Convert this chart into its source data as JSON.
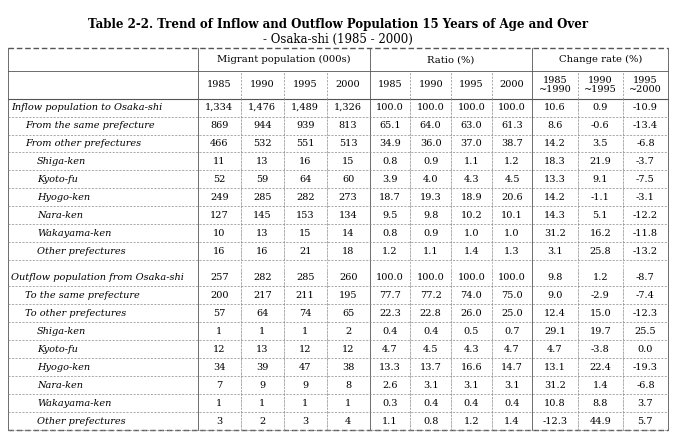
{
  "title_line1": "Table 2-2. Trend of Inflow and Outflow Population 15 Years of Age and Over",
  "title_line2": "- Osaka-shi (1985 - 2000)",
  "rows": [
    {
      "label": "Inflow population to Osaka-shi",
      "indent": 0,
      "values": [
        "1,334",
        "1,476",
        "1,489",
        "1,326",
        "100.0",
        "100.0",
        "100.0",
        "100.0",
        "10.6",
        "0.9",
        "-10.9"
      ]
    },
    {
      "label": "From the same prefecture",
      "indent": 1,
      "values": [
        "869",
        "944",
        "939",
        "813",
        "65.1",
        "64.0",
        "63.0",
        "61.3",
        "8.6",
        "-0.6",
        "-13.4"
      ]
    },
    {
      "label": "From other prefectures",
      "indent": 1,
      "values": [
        "466",
        "532",
        "551",
        "513",
        "34.9",
        "36.0",
        "37.0",
        "38.7",
        "14.2",
        "3.5",
        "-6.8"
      ]
    },
    {
      "label": "Shiga-ken",
      "indent": 2,
      "values": [
        "11",
        "13",
        "16",
        "15",
        "0.8",
        "0.9",
        "1.1",
        "1.2",
        "18.3",
        "21.9",
        "-3.7"
      ]
    },
    {
      "label": "Kyoto-fu",
      "indent": 2,
      "values": [
        "52",
        "59",
        "64",
        "60",
        "3.9",
        "4.0",
        "4.3",
        "4.5",
        "13.3",
        "9.1",
        "-7.5"
      ]
    },
    {
      "label": "Hyogo-ken",
      "indent": 2,
      "values": [
        "249",
        "285",
        "282",
        "273",
        "18.7",
        "19.3",
        "18.9",
        "20.6",
        "14.2",
        "-1.1",
        "-3.1"
      ]
    },
    {
      "label": "Nara-ken",
      "indent": 2,
      "values": [
        "127",
        "145",
        "153",
        "134",
        "9.5",
        "9.8",
        "10.2",
        "10.1",
        "14.3",
        "5.1",
        "-12.2"
      ]
    },
    {
      "label": "Wakayama-ken",
      "indent": 2,
      "values": [
        "10",
        "13",
        "15",
        "14",
        "0.8",
        "0.9",
        "1.0",
        "1.0",
        "31.2",
        "16.2",
        "-11.8"
      ]
    },
    {
      "label": "Other prefectures",
      "indent": 2,
      "values": [
        "16",
        "16",
        "21",
        "18",
        "1.2",
        "1.1",
        "1.4",
        "1.3",
        "3.1",
        "25.8",
        "-13.2"
      ]
    },
    {
      "label": "",
      "indent": 0,
      "values": [
        "",
        "",
        "",
        "",
        "",
        "",
        "",
        "",
        "",
        "",
        ""
      ]
    },
    {
      "label": "Outflow population from Osaka-shi",
      "indent": 0,
      "values": [
        "257",
        "282",
        "285",
        "260",
        "100.0",
        "100.0",
        "100.0",
        "100.0",
        "9.8",
        "1.2",
        "-8.7"
      ]
    },
    {
      "label": "To the same prefecture",
      "indent": 1,
      "values": [
        "200",
        "217",
        "211",
        "195",
        "77.7",
        "77.2",
        "74.0",
        "75.0",
        "9.0",
        "-2.9",
        "-7.4"
      ]
    },
    {
      "label": "To other prefectures",
      "indent": 1,
      "values": [
        "57",
        "64",
        "74",
        "65",
        "22.3",
        "22.8",
        "26.0",
        "25.0",
        "12.4",
        "15.0",
        "-12.3"
      ]
    },
    {
      "label": "Shiga-ken",
      "indent": 2,
      "values": [
        "1",
        "1",
        "1",
        "2",
        "0.4",
        "0.4",
        "0.5",
        "0.7",
        "29.1",
        "19.7",
        "25.5"
      ]
    },
    {
      "label": "Kyoto-fu",
      "indent": 2,
      "values": [
        "12",
        "13",
        "12",
        "12",
        "4.7",
        "4.5",
        "4.3",
        "4.7",
        "4.7",
        "-3.8",
        "0.0"
      ]
    },
    {
      "label": "Hyogo-ken",
      "indent": 2,
      "values": [
        "34",
        "39",
        "47",
        "38",
        "13.3",
        "13.7",
        "16.6",
        "14.7",
        "13.1",
        "22.4",
        "-19.3"
      ]
    },
    {
      "label": "Nara-ken",
      "indent": 2,
      "values": [
        "7",
        "9",
        "9",
        "8",
        "2.6",
        "3.1",
        "3.1",
        "3.1",
        "31.2",
        "1.4",
        "-6.8"
      ]
    },
    {
      "label": "Wakayama-ken",
      "indent": 2,
      "values": [
        "1",
        "1",
        "1",
        "1",
        "0.3",
        "0.4",
        "0.4",
        "0.4",
        "10.8",
        "8.8",
        "3.7"
      ]
    },
    {
      "label": "Other prefectures",
      "indent": 2,
      "values": [
        "3",
        "2",
        "3",
        "4",
        "1.1",
        "0.8",
        "1.2",
        "1.4",
        "-12.3",
        "44.9",
        "5.7"
      ]
    }
  ],
  "bg_color": "#ffffff"
}
